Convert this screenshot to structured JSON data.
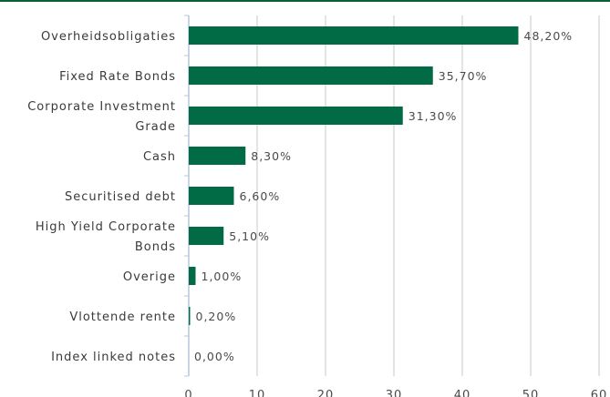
{
  "colors": {
    "bar": "#006b44",
    "grid": "#c8c8c8",
    "axis": "#b8c6dc",
    "top_rule": "#0b5e3a"
  },
  "chart_data": {
    "type": "bar",
    "orientation": "horizontal",
    "categories": [
      "Overheidsobligaties",
      "Fixed Rate Bonds",
      "Corporate Investment Grade",
      "Cash",
      "Securitised debt",
      "High Yield Corporate Bonds",
      "Overige",
      "Vlottende rente",
      "Index linked notes"
    ],
    "category_lines": [
      [
        "Overheidsobligaties"
      ],
      [
        "Fixed Rate Bonds"
      ],
      [
        "Corporate Investment",
        "Grade"
      ],
      [
        "Cash"
      ],
      [
        "Securitised debt"
      ],
      [
        "High Yield Corporate",
        "Bonds"
      ],
      [
        "Overige"
      ],
      [
        "Vlottende rente"
      ],
      [
        "Index linked notes"
      ]
    ],
    "values": [
      48.2,
      35.7,
      31.3,
      8.3,
      6.6,
      5.1,
      1.0,
      0.2,
      0.0
    ],
    "value_labels": [
      "48,20%",
      "35,70%",
      "31,30%",
      "8,30%",
      "6,60%",
      "5,10%",
      "1,00%",
      "0,20%",
      "0,00%"
    ],
    "xlim": [
      0,
      60
    ],
    "xticks": [
      0,
      10,
      20,
      30,
      40,
      50,
      60
    ],
    "grid": true,
    "legend": "none"
  }
}
